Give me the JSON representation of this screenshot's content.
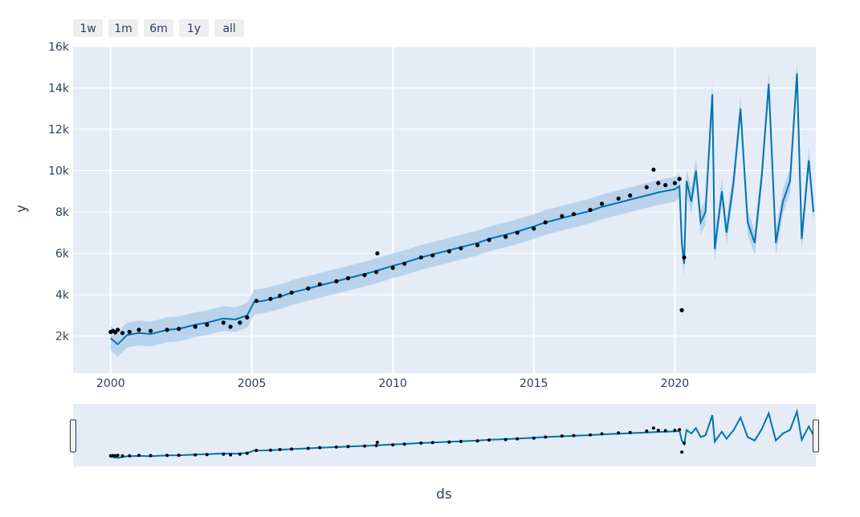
{
  "range_selector": {
    "buttons": [
      {
        "label": "1w"
      },
      {
        "label": "1m"
      },
      {
        "label": "6m"
      },
      {
        "label": "1y"
      },
      {
        "label": "all"
      }
    ]
  },
  "colors": {
    "plot_background": "#e5ecf6",
    "forecast_line": "#0072b2",
    "uncertainty_band": "#a9cbe9",
    "observed_points": "#000000",
    "axis_text": "#2a3f5f"
  },
  "chart_data": {
    "type": "line",
    "xlabel": "ds",
    "ylabel": "y",
    "xlim": [
      "1998-09-01",
      "2024-12-31"
    ],
    "ylim": [
      200,
      16000
    ],
    "x_ticks": [
      {
        "label": "2000",
        "value": "2000-01-01"
      },
      {
        "label": "2005",
        "value": "2005-01-01"
      },
      {
        "label": "2010",
        "value": "2010-01-01"
      },
      {
        "label": "2015",
        "value": "2015-01-01"
      },
      {
        "label": "2020",
        "value": "2020-01-01"
      }
    ],
    "y_ticks": [
      {
        "label": "2k",
        "value": 2000
      },
      {
        "label": "4k",
        "value": 4000
      },
      {
        "label": "6k",
        "value": 6000
      },
      {
        "label": "8k",
        "value": 8000
      },
      {
        "label": "10k",
        "value": 10000
      },
      {
        "label": "12k",
        "value": 12000
      },
      {
        "label": "14k",
        "value": 14000
      },
      {
        "label": "16k",
        "value": 16000
      }
    ],
    "grid": true,
    "range_slider": true,
    "series": [
      {
        "role": "observed",
        "mode": "markers",
        "points": [
          [
            "2000-01-01",
            2200
          ],
          [
            "2000-02-01",
            2250
          ],
          [
            "2000-03-01",
            2180
          ],
          [
            "2000-04-01",
            2300
          ],
          [
            "2000-06-01",
            2150
          ],
          [
            "2000-09-01",
            2200
          ],
          [
            "2001-01-01",
            2300
          ],
          [
            "2001-06-01",
            2250
          ],
          [
            "2002-01-01",
            2300
          ],
          [
            "2002-06-01",
            2350
          ],
          [
            "2003-01-01",
            2450
          ],
          [
            "2003-06-01",
            2550
          ],
          [
            "2004-01-01",
            2650
          ],
          [
            "2004-04-01",
            2450
          ],
          [
            "2004-08-01",
            2650
          ],
          [
            "2004-11-01",
            2900
          ],
          [
            "2005-03-01",
            3700
          ],
          [
            "2005-09-01",
            3800
          ],
          [
            "2006-01-01",
            3950
          ],
          [
            "2006-06-01",
            4100
          ],
          [
            "2007-01-01",
            4300
          ],
          [
            "2007-06-01",
            4500
          ],
          [
            "2008-01-01",
            4650
          ],
          [
            "2008-06-01",
            4800
          ],
          [
            "2009-01-01",
            4950
          ],
          [
            "2009-06-01",
            5100
          ],
          [
            "2009-06-15",
            6000
          ],
          [
            "2010-01-01",
            5300
          ],
          [
            "2010-06-01",
            5500
          ],
          [
            "2011-01-01",
            5800
          ],
          [
            "2011-06-01",
            5900
          ],
          [
            "2012-01-01",
            6100
          ],
          [
            "2012-06-01",
            6250
          ],
          [
            "2013-01-01",
            6400
          ],
          [
            "2013-06-01",
            6650
          ],
          [
            "2014-01-01",
            6800
          ],
          [
            "2014-06-01",
            7000
          ],
          [
            "2015-01-01",
            7200
          ],
          [
            "2015-06-01",
            7500
          ],
          [
            "2016-01-01",
            7800
          ],
          [
            "2016-06-01",
            7900
          ],
          [
            "2017-01-01",
            8100
          ],
          [
            "2017-06-01",
            8400
          ],
          [
            "2018-01-01",
            8650
          ],
          [
            "2018-06-01",
            8800
          ],
          [
            "2019-01-01",
            9200
          ],
          [
            "2019-04-01",
            10050
          ],
          [
            "2019-06-01",
            9400
          ],
          [
            "2019-09-01",
            9300
          ],
          [
            "2020-01-01",
            9400
          ],
          [
            "2020-03-01",
            9600
          ],
          [
            "2020-04-01",
            3250
          ],
          [
            "2020-05-01",
            5800
          ]
        ]
      },
      {
        "role": "forecast",
        "mode": "lines",
        "points": [
          [
            "2000-01-01",
            1900
          ],
          [
            "2000-04-01",
            1600
          ],
          [
            "2000-08-01",
            2050
          ],
          [
            "2001-01-01",
            2150
          ],
          [
            "2001-06-01",
            2100
          ],
          [
            "2002-01-01",
            2300
          ],
          [
            "2002-06-01",
            2350
          ],
          [
            "2003-01-01",
            2550
          ],
          [
            "2003-06-01",
            2650
          ],
          [
            "2004-01-01",
            2850
          ],
          [
            "2004-06-01",
            2800
          ],
          [
            "2004-11-01",
            3000
          ],
          [
            "2005-02-01",
            3650
          ],
          [
            "2005-06-01",
            3700
          ],
          [
            "2006-01-01",
            3900
          ],
          [
            "2006-06-01",
            4100
          ],
          [
            "2007-01-01",
            4300
          ],
          [
            "2007-06-01",
            4450
          ],
          [
            "2008-01-01",
            4650
          ],
          [
            "2008-06-01",
            4800
          ],
          [
            "2009-01-01",
            5000
          ],
          [
            "2009-06-01",
            5150
          ],
          [
            "2010-01-01",
            5400
          ],
          [
            "2010-06-01",
            5550
          ],
          [
            "2011-01-01",
            5800
          ],
          [
            "2011-06-01",
            5950
          ],
          [
            "2012-01-01",
            6150
          ],
          [
            "2012-06-01",
            6300
          ],
          [
            "2013-01-01",
            6500
          ],
          [
            "2013-06-01",
            6700
          ],
          [
            "2014-01-01",
            6900
          ],
          [
            "2014-06-01",
            7050
          ],
          [
            "2015-01-01",
            7300
          ],
          [
            "2015-06-01",
            7500
          ],
          [
            "2016-01-01",
            7700
          ],
          [
            "2016-06-01",
            7850
          ],
          [
            "2017-01-01",
            8050
          ],
          [
            "2017-06-01",
            8250
          ],
          [
            "2018-01-01",
            8450
          ],
          [
            "2018-06-01",
            8600
          ],
          [
            "2019-01-01",
            8800
          ],
          [
            "2019-06-01",
            8950
          ],
          [
            "2020-01-01",
            9100
          ],
          [
            "2020-03-01",
            9250
          ],
          [
            "2020-04-01",
            6500
          ],
          [
            "2020-05-01",
            5500
          ],
          [
            "2020-06-01",
            9500
          ],
          [
            "2020-08-01",
            8500
          ],
          [
            "2020-10-01",
            10000
          ],
          [
            "2020-12-01",
            7500
          ],
          [
            "2021-02-01",
            8000
          ],
          [
            "2021-05-01",
            13700
          ],
          [
            "2021-06-01",
            6200
          ],
          [
            "2021-09-01",
            9000
          ],
          [
            "2021-11-01",
            7000
          ],
          [
            "2022-02-01",
            9500
          ],
          [
            "2022-05-01",
            13000
          ],
          [
            "2022-08-01",
            7500
          ],
          [
            "2022-11-01",
            6500
          ],
          [
            "2023-02-01",
            9800
          ],
          [
            "2023-05-01",
            14200
          ],
          [
            "2023-08-01",
            6500
          ],
          [
            "2023-11-01",
            8500
          ],
          [
            "2024-02-01",
            9500
          ],
          [
            "2024-05-01",
            14700
          ],
          [
            "2024-07-01",
            6700
          ],
          [
            "2024-10-01",
            10500
          ],
          [
            "2024-12-01",
            8000
          ]
        ]
      }
    ]
  }
}
